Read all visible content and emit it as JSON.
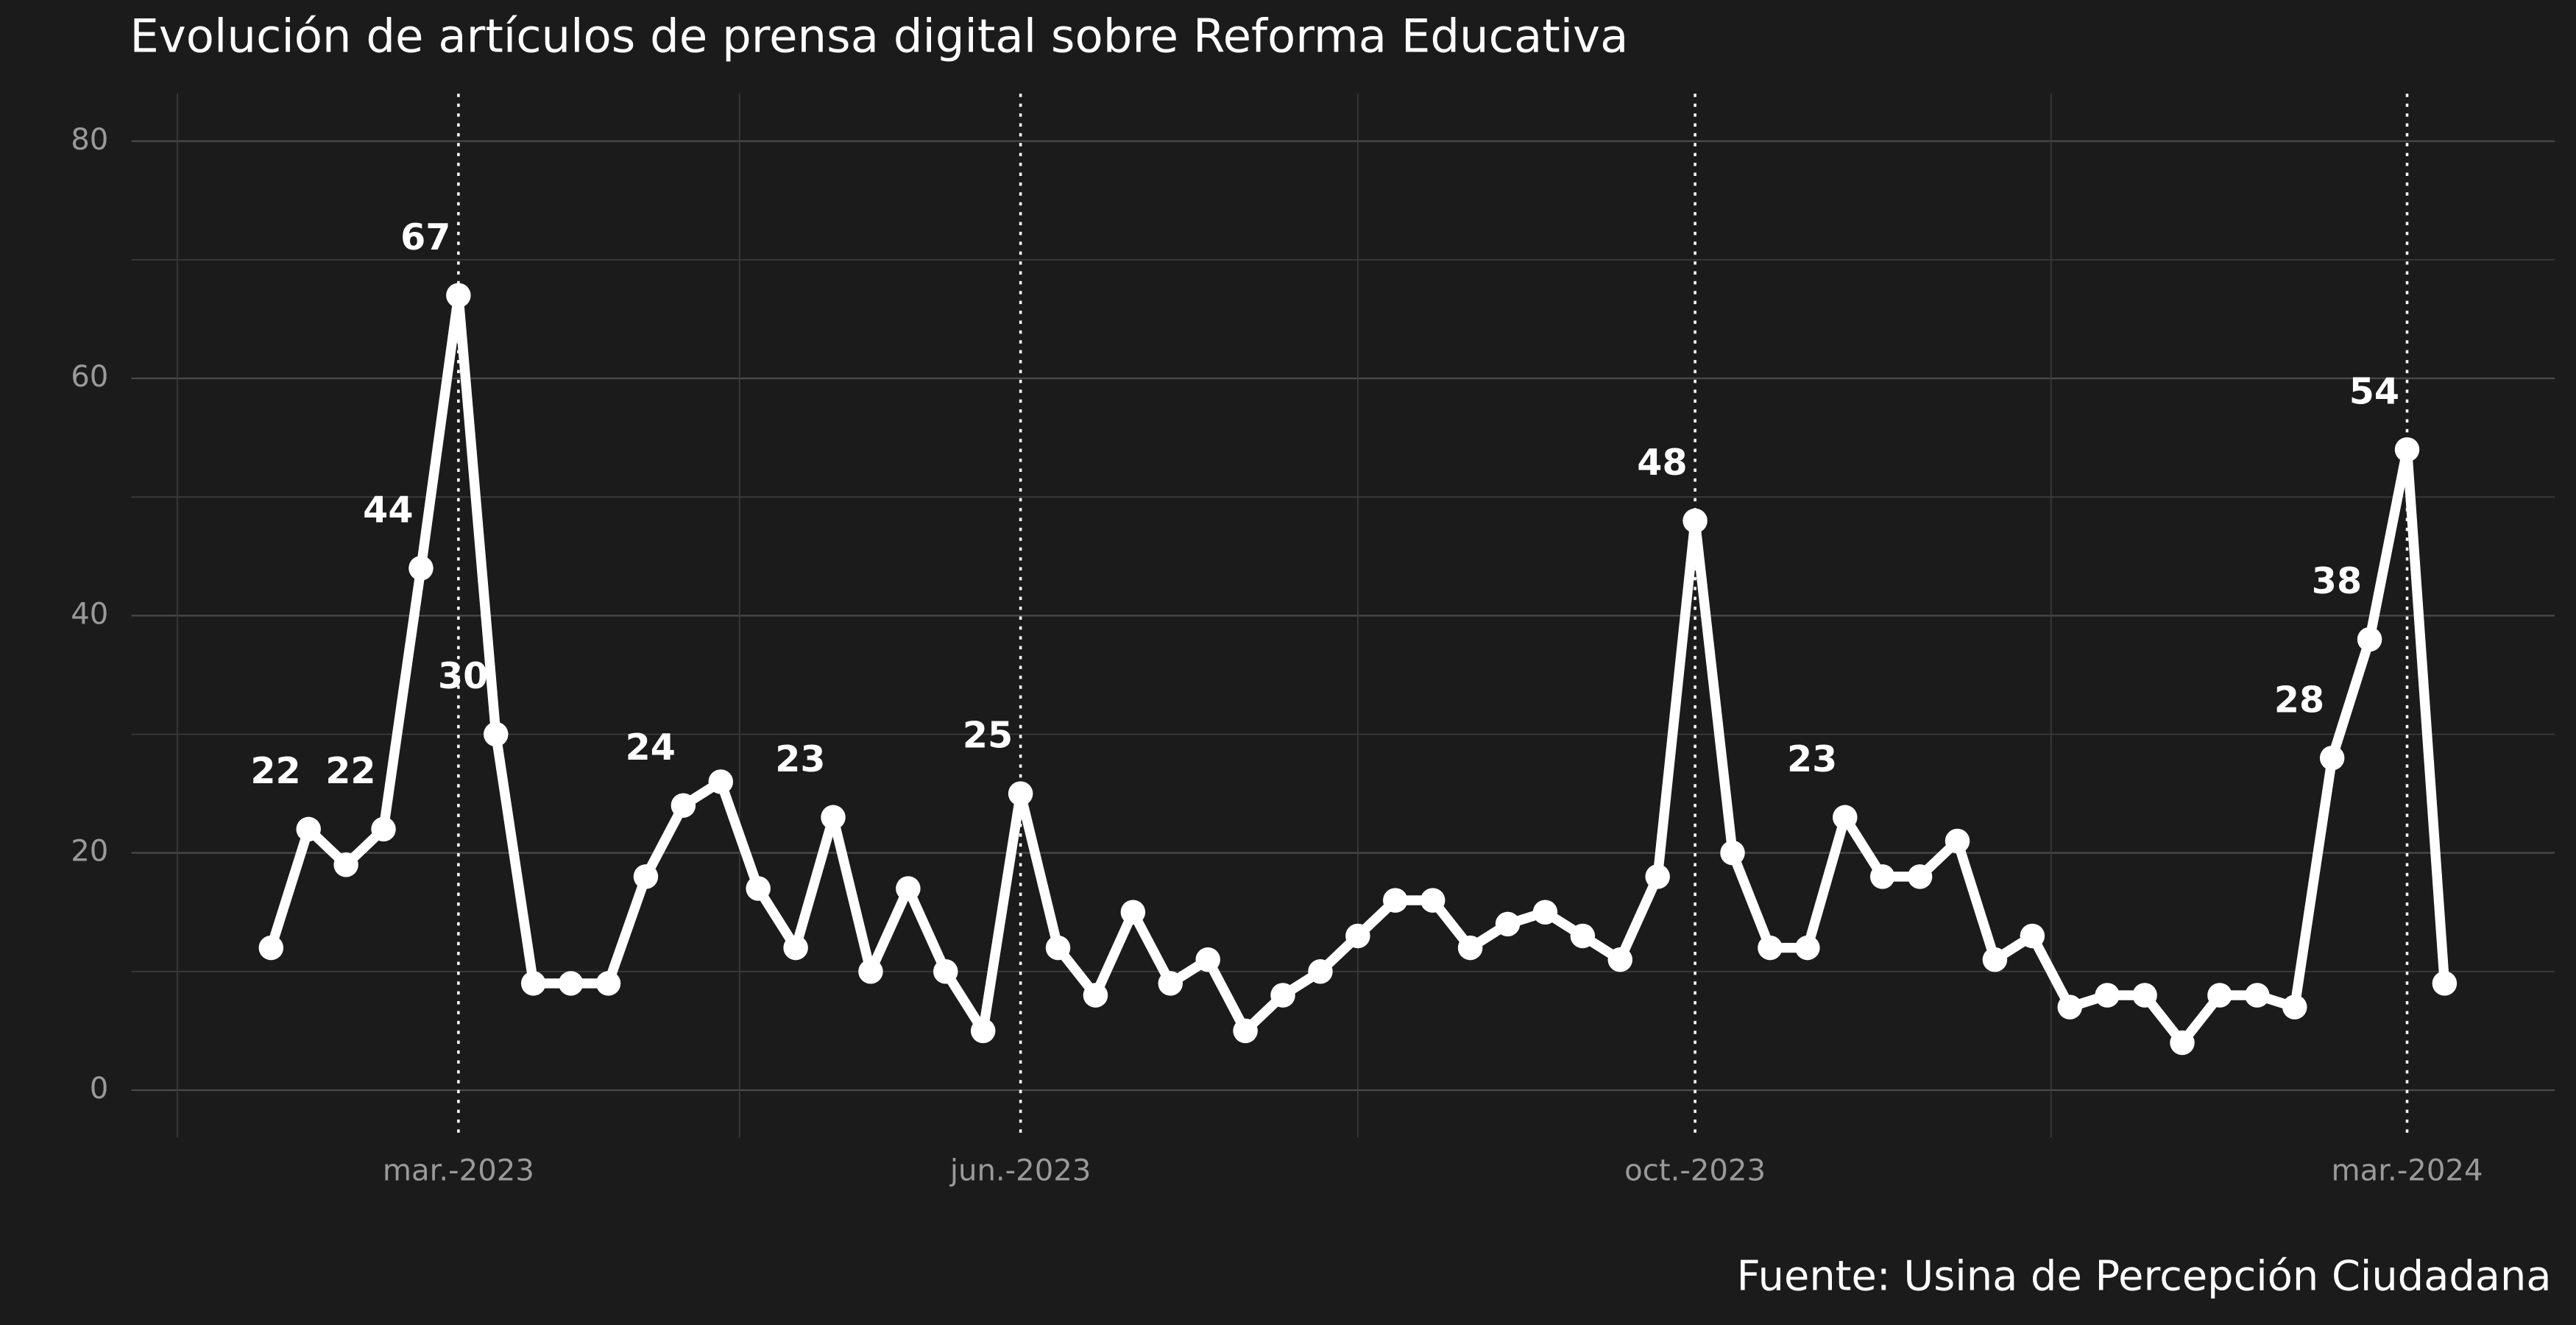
{
  "chart_data": {
    "type": "line",
    "title": "Evolución de artículos de prensa digital sobre Reforma Educativa",
    "caption": "Fuente: Usina de Percepción Ciudadana",
    "categories": [
      null,
      null,
      null,
      null,
      null,
      "mar.-2023",
      null,
      null,
      null,
      null,
      null,
      null,
      null,
      null,
      null,
      null,
      null,
      null,
      null,
      null,
      "jun.-2023",
      null,
      null,
      null,
      null,
      null,
      null,
      null,
      null,
      null,
      null,
      null,
      null,
      null,
      null,
      null,
      null,
      null,
      "oct.-2023",
      null,
      null,
      null,
      null,
      null,
      null,
      null,
      null,
      null,
      null,
      null,
      null,
      null,
      null,
      null,
      null,
      null,
      null,
      "mar.-2024",
      null
    ],
    "series": [
      {
        "name": "artículos",
        "color": "#ffffff",
        "values": [
          12,
          22,
          19,
          22,
          44,
          67,
          30,
          9,
          9,
          9,
          18,
          24,
          26,
          17,
          12,
          23,
          10,
          17,
          10,
          5,
          25,
          12,
          8,
          15,
          9,
          11,
          5,
          8,
          10,
          13,
          16,
          16,
          12,
          14,
          15,
          13,
          11,
          18,
          48,
          20,
          12,
          12,
          23,
          18,
          18,
          21,
          11,
          13,
          7,
          8,
          8,
          4,
          8,
          8,
          7,
          28,
          38,
          54,
          9
        ],
        "value_labels": [
          null,
          22,
          null,
          22,
          44,
          67,
          30,
          null,
          null,
          null,
          null,
          24,
          null,
          null,
          null,
          23,
          null,
          null,
          null,
          null,
          25,
          null,
          null,
          null,
          null,
          null,
          null,
          null,
          null,
          null,
          null,
          null,
          null,
          null,
          null,
          null,
          null,
          null,
          48,
          null,
          null,
          null,
          23,
          null,
          null,
          null,
          null,
          null,
          null,
          null,
          null,
          null,
          null,
          null,
          null,
          28,
          38,
          54,
          null
        ]
      }
    ],
    "ylim": [
      -4,
      84
    ],
    "yticks": [
      0,
      20,
      40,
      60,
      80
    ],
    "grid": true
  }
}
